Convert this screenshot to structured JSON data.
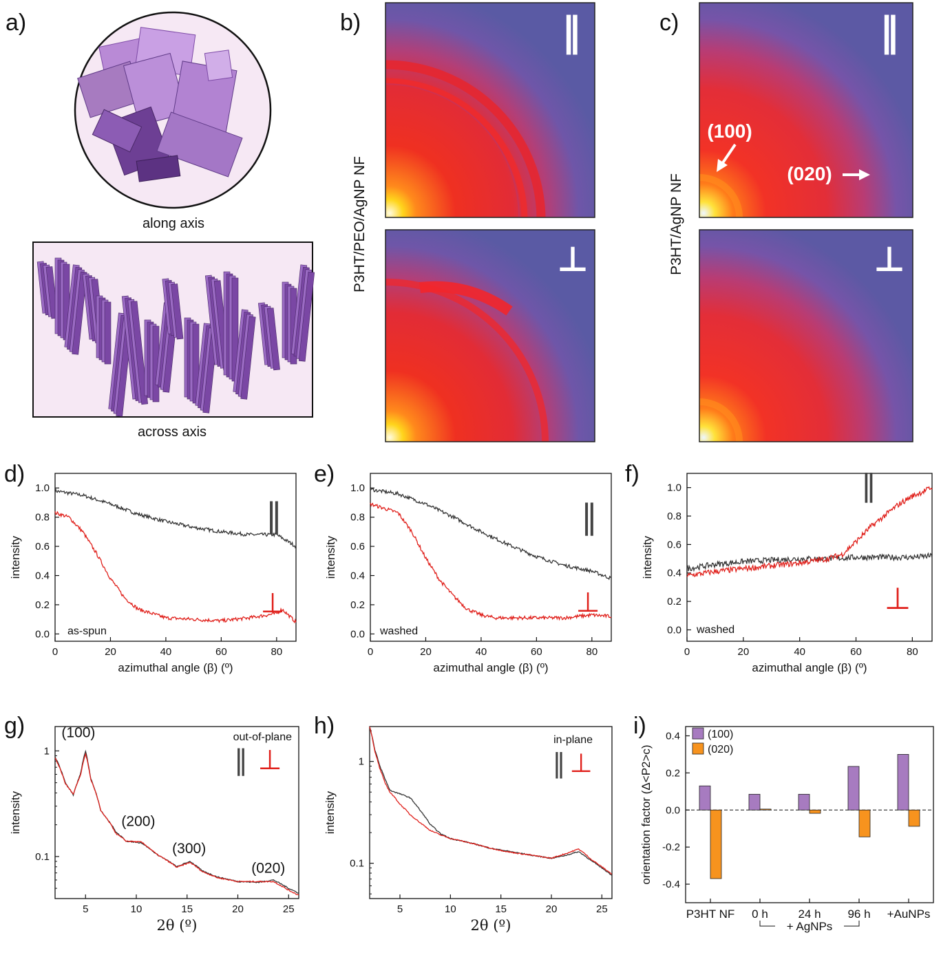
{
  "panel_labels": [
    "a)",
    "b)",
    "c)",
    "d)",
    "e)",
    "f)",
    "g)",
    "h)",
    "i)"
  ],
  "panel_a": {
    "top_caption": "along axis",
    "bottom_caption": "across axis"
  },
  "panel_b": {
    "side_label": "P3HT/PEO/AgNP NF",
    "top_symbol": "‖",
    "bottom_symbol": "⊥"
  },
  "panel_c": {
    "side_label": "P3HT/AgNP NF",
    "top_symbol": "‖",
    "bottom_symbol": "⊥",
    "arrow_label_100": "(100)",
    "arrow_label_020": "(020)"
  },
  "colors": {
    "parallel": "#333333",
    "perpendicular": "#e0201b",
    "bar_100": "#a77bc0",
    "bar_020": "#f7931e"
  },
  "chart_data": [
    {
      "panel": "d",
      "type": "line",
      "xlabel": "azimuthal angle (β) (º)",
      "ylabel": "intensity",
      "xlim": [
        0,
        87
      ],
      "ylim": [
        -0.05,
        1.1
      ],
      "xticks": [
        0,
        20,
        40,
        60,
        80
      ],
      "yticks": [
        0.0,
        0.2,
        0.4,
        0.6,
        0.8,
        1.0
      ],
      "annotation": "as-spun",
      "legend_parallel": "‖",
      "legend_perp": "⊥",
      "series": [
        {
          "name": "‖",
          "x": [
            0,
            10,
            20,
            30,
            40,
            50,
            60,
            70,
            80,
            87
          ],
          "y": [
            0.98,
            0.95,
            0.89,
            0.82,
            0.77,
            0.73,
            0.7,
            0.68,
            0.68,
            0.6
          ]
        },
        {
          "name": "⊥",
          "x": [
            0,
            5,
            10,
            15,
            20,
            25,
            30,
            40,
            50,
            60,
            70,
            80,
            82,
            87
          ],
          "y": [
            0.83,
            0.8,
            0.7,
            0.55,
            0.38,
            0.25,
            0.17,
            0.11,
            0.1,
            0.09,
            0.11,
            0.14,
            0.17,
            0.08
          ]
        }
      ]
    },
    {
      "panel": "e",
      "type": "line",
      "xlabel": "azimuthal angle (β) (º)",
      "ylabel": "intensity",
      "xlim": [
        0,
        87
      ],
      "ylim": [
        -0.05,
        1.1
      ],
      "xticks": [
        0,
        20,
        40,
        60,
        80
      ],
      "yticks": [
        0.0,
        0.2,
        0.4,
        0.6,
        0.8,
        1.0
      ],
      "annotation": "washed",
      "legend_parallel": "‖",
      "legend_perp": "⊥",
      "series": [
        {
          "name": "‖",
          "x": [
            0,
            10,
            20,
            30,
            40,
            50,
            60,
            70,
            80,
            87
          ],
          "y": [
            0.99,
            0.96,
            0.89,
            0.8,
            0.7,
            0.61,
            0.53,
            0.47,
            0.43,
            0.38
          ]
        },
        {
          "name": "⊥",
          "x": [
            0,
            10,
            15,
            20,
            25,
            30,
            35,
            40,
            45,
            50,
            60,
            70,
            80,
            87
          ],
          "y": [
            0.89,
            0.83,
            0.7,
            0.52,
            0.37,
            0.26,
            0.17,
            0.13,
            0.11,
            0.11,
            0.11,
            0.11,
            0.13,
            0.12
          ]
        }
      ]
    },
    {
      "panel": "f",
      "type": "line",
      "xlabel": "azimuthal angle (β) (º)",
      "ylabel": "intensity",
      "xlim": [
        0,
        87
      ],
      "ylim": [
        -0.08,
        1.1
      ],
      "xticks": [
        0,
        20,
        40,
        60,
        80
      ],
      "yticks": [
        0.0,
        0.2,
        0.4,
        0.6,
        0.8,
        1.0
      ],
      "annotation": "washed",
      "legend_parallel": "‖",
      "legend_perp": "⊥",
      "series": [
        {
          "name": "‖",
          "x": [
            0,
            10,
            20,
            30,
            40,
            50,
            60,
            70,
            80,
            87
          ],
          "y": [
            0.43,
            0.46,
            0.48,
            0.49,
            0.5,
            0.5,
            0.51,
            0.51,
            0.51,
            0.52
          ]
        },
        {
          "name": "⊥",
          "x": [
            0,
            10,
            20,
            30,
            40,
            50,
            55,
            60,
            65,
            70,
            75,
            80,
            87
          ],
          "y": [
            0.38,
            0.41,
            0.43,
            0.45,
            0.47,
            0.5,
            0.53,
            0.62,
            0.72,
            0.8,
            0.88,
            0.94,
            1.0
          ]
        }
      ]
    },
    {
      "panel": "g",
      "type": "line",
      "scale_y": "log",
      "xlabel": "2θ (º)",
      "ylabel": "intensity",
      "xlim": [
        2,
        26
      ],
      "ylim": [
        0.04,
        1.7
      ],
      "xticks": [
        5,
        10,
        15,
        20,
        25
      ],
      "yticks": [
        0.1,
        1
      ],
      "ytick_labels": [
        "0.1",
        "1"
      ],
      "annotation": "out-of-plane",
      "legend_parallel": "‖",
      "legend_perp": "⊥",
      "peak_labels": [
        {
          "text": "(100)",
          "x": 4.3,
          "y": 1.35
        },
        {
          "text": "(200)",
          "x": 10.2,
          "y": 0.195
        },
        {
          "text": "(300)",
          "x": 15.2,
          "y": 0.108
        },
        {
          "text": "(020)",
          "x": 23.0,
          "y": 0.07
        }
      ],
      "series": [
        {
          "name": "‖",
          "x": [
            2,
            3,
            3.8,
            4.5,
            5,
            5.5,
            6.5,
            8,
            9,
            10.5,
            12,
            14,
            15.3,
            16.5,
            18,
            20,
            22,
            23.5,
            25,
            26
          ],
          "y": [
            0.88,
            0.5,
            0.38,
            0.6,
            0.99,
            0.55,
            0.27,
            0.17,
            0.14,
            0.135,
            0.105,
            0.08,
            0.09,
            0.073,
            0.064,
            0.058,
            0.057,
            0.06,
            0.05,
            0.045
          ]
        },
        {
          "name": "⊥",
          "x": [
            2,
            3,
            3.8,
            4.5,
            5,
            5.5,
            6.5,
            8,
            9,
            10.5,
            12,
            14,
            15.3,
            16.5,
            18,
            20,
            22,
            23.5,
            25,
            26
          ],
          "y": [
            0.86,
            0.49,
            0.39,
            0.58,
            0.94,
            0.54,
            0.27,
            0.165,
            0.14,
            0.137,
            0.105,
            0.079,
            0.088,
            0.072,
            0.063,
            0.058,
            0.058,
            0.058,
            0.048,
            0.043
          ]
        }
      ]
    },
    {
      "panel": "h",
      "type": "line",
      "scale_y": "log",
      "xlabel": "2θ (º)",
      "ylabel": "intensity",
      "xlim": [
        2,
        26
      ],
      "ylim": [
        0.045,
        2.2
      ],
      "xticks": [
        5,
        10,
        15,
        20,
        25
      ],
      "yticks": [
        0.1,
        1
      ],
      "ytick_labels": [
        "0.1",
        "1"
      ],
      "annotation": "in-plane",
      "legend_parallel": "‖",
      "legend_perp": "⊥",
      "series": [
        {
          "name": "‖",
          "x": [
            2,
            2.5,
            3,
            3.5,
            4,
            5,
            6,
            7,
            8,
            9,
            10,
            12,
            14,
            16,
            18,
            20,
            21.5,
            22.7,
            24,
            25,
            26
          ],
          "y": [
            2.2,
            1.3,
            0.9,
            0.68,
            0.52,
            0.48,
            0.44,
            0.33,
            0.24,
            0.195,
            0.175,
            0.158,
            0.14,
            0.13,
            0.12,
            0.112,
            0.12,
            0.13,
            0.105,
            0.09,
            0.076
          ]
        },
        {
          "name": "⊥",
          "x": [
            2,
            2.5,
            3,
            3.5,
            4,
            5,
            6,
            7,
            8,
            9,
            10,
            12,
            14,
            16,
            18,
            20,
            21.5,
            22.7,
            24,
            25,
            26
          ],
          "y": [
            2.2,
            1.25,
            0.85,
            0.62,
            0.5,
            0.38,
            0.3,
            0.25,
            0.21,
            0.19,
            0.175,
            0.158,
            0.14,
            0.128,
            0.12,
            0.112,
            0.125,
            0.138,
            0.108,
            0.092,
            0.078
          ]
        }
      ]
    },
    {
      "panel": "i",
      "type": "bar",
      "ylabel": "orientation factor (Δ<P2>c)",
      "ylim": [
        -0.5,
        0.45
      ],
      "yticks": [
        -0.4,
        -0.2,
        0.0,
        0.2,
        0.4
      ],
      "categories": [
        "P3HT NF",
        "0 h",
        "24 h",
        "96 h",
        "+AuNPs"
      ],
      "group_label": "+ AgNPs",
      "series": [
        {
          "name": "(100)",
          "values": [
            0.13,
            0.085,
            0.085,
            0.235,
            0.3
          ]
        },
        {
          "name": "(020)",
          "values": [
            -0.37,
            0.005,
            -0.018,
            -0.145,
            -0.088
          ]
        }
      ]
    }
  ]
}
